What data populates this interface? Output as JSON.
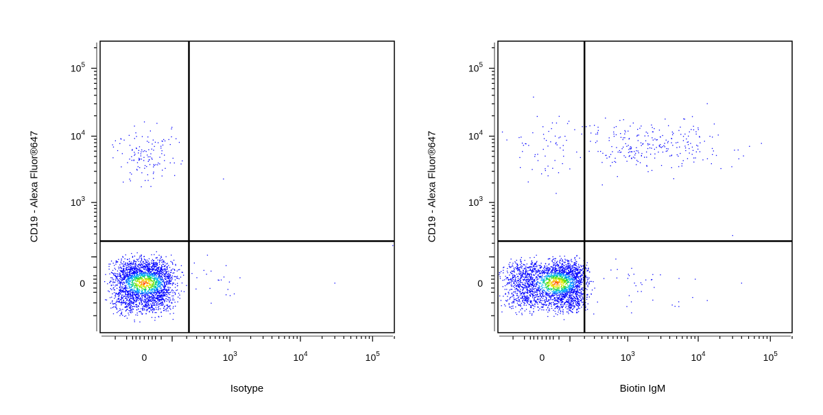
{
  "chart_data": [
    {
      "type": "scatter",
      "subtype": "flow-cytometry-density-dot-plot",
      "xlabel": "Isotype",
      "ylabel": "CD19 - Alexa Fluor®647",
      "x_scale": "biexponential",
      "y_scale": "biexponential",
      "xlim": [
        -200,
        200000
      ],
      "ylim": [
        -200,
        250000
      ],
      "x_ticks": [
        {
          "value": 0,
          "label": "0"
        },
        {
          "value": 1000,
          "label": "10",
          "exp": "3"
        },
        {
          "value": 10000,
          "label": "10",
          "exp": "4"
        },
        {
          "value": 100000,
          "label": "10",
          "exp": "5"
        }
      ],
      "y_ticks": [
        {
          "value": 0,
          "label": "0"
        },
        {
          "value": 1000,
          "label": "10",
          "exp": "3"
        },
        {
          "value": 10000,
          "label": "10",
          "exp": "4"
        },
        {
          "value": 100000,
          "label": "10",
          "exp": "5"
        }
      ],
      "gates": {
        "x": 220,
        "y": 220
      },
      "populations": [
        {
          "cx": 0,
          "cy": 0,
          "sx": 50,
          "sy": 40,
          "n": 2600,
          "dense": true
        },
        {
          "cx": 0,
          "cy": 5500,
          "sx": 0.2,
          "sy": 0.22,
          "n": 130,
          "xlin": true,
          "logy": true
        },
        {
          "cx": 400,
          "cy": 0,
          "sx": 0.35,
          "sy": 40,
          "n": 30,
          "logx": true
        }
      ],
      "points": [
        {
          "x": 800,
          "y": 2300
        },
        {
          "x": 30000,
          "y": 0
        },
        {
          "x": 190000,
          "y": 180
        }
      ]
    },
    {
      "type": "scatter",
      "subtype": "flow-cytometry-density-dot-plot",
      "xlabel": "Biotin IgM",
      "ylabel": "CD19 - Alexa Fluor®647",
      "x_scale": "biexponential",
      "y_scale": "biexponential",
      "xlim": [
        -200,
        200000
      ],
      "ylim": [
        -200,
        250000
      ],
      "x_ticks": [
        {
          "value": 0,
          "label": "0"
        },
        {
          "value": 1000,
          "label": "10",
          "exp": "3"
        },
        {
          "value": 10000,
          "label": "10",
          "exp": "4"
        },
        {
          "value": 100000,
          "label": "10",
          "exp": "5"
        }
      ],
      "y_ticks": [
        {
          "value": 0,
          "label": "0"
        },
        {
          "value": 1000,
          "label": "10",
          "exp": "3"
        },
        {
          "value": 10000,
          "label": "10",
          "exp": "4"
        },
        {
          "value": 100000,
          "label": "10",
          "exp": "5"
        }
      ],
      "gates": {
        "x": 200,
        "y": 220
      },
      "populations": [
        {
          "cx": 40,
          "cy": 0,
          "sx": 80,
          "sy": 35,
          "n": 2800,
          "dense": true
        },
        {
          "cx": 2000,
          "cy": 7000,
          "sx": 0.55,
          "sy": 0.18,
          "n": 260,
          "logx": true,
          "logy": true
        },
        {
          "cx": 0,
          "cy": 6000,
          "sx": 0.25,
          "sy": 0.25,
          "n": 60,
          "xlin": true,
          "logy": true
        },
        {
          "cx": 1200,
          "cy": 0,
          "sx": 0.4,
          "sy": 45,
          "n": 40,
          "logx": true
        }
      ],
      "points": [
        {
          "x": 30000,
          "y": 280
        },
        {
          "x": 40000,
          "y": 0
        },
        {
          "x": 700,
          "y": 2500
        }
      ]
    }
  ]
}
